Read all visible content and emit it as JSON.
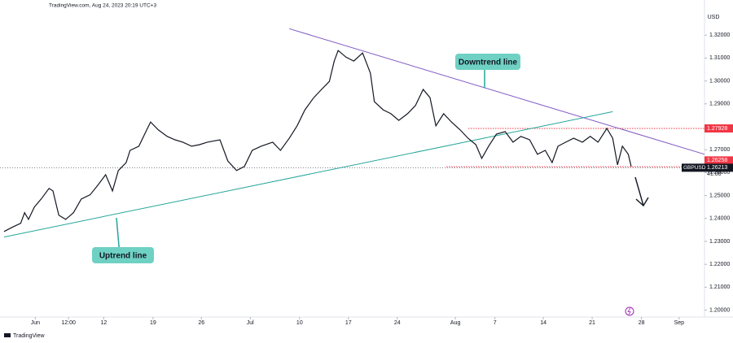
{
  "header": "TradingView.com, Aug 24, 2023 20:19 UTC+3",
  "brand": "TradingView",
  "chart_data": {
    "type": "line",
    "currency": "USD",
    "xlim": [
      0,
      71.7
    ],
    "xticks": [
      {
        "value": 3.2,
        "label": "Jun"
      },
      {
        "value": 6.6,
        "label": "12:00"
      },
      {
        "value": 10.2,
        "label": "12"
      },
      {
        "value": 15.25,
        "label": "19"
      },
      {
        "value": 20.2,
        "label": "26"
      },
      {
        "value": 25.2,
        "label": "Jul"
      },
      {
        "value": 30.25,
        "label": "10"
      },
      {
        "value": 35.25,
        "label": "17"
      },
      {
        "value": 40.25,
        "label": "24"
      },
      {
        "value": 46.2,
        "label": "Aug"
      },
      {
        "value": 50.25,
        "label": "7"
      },
      {
        "value": 55.2,
        "label": "14"
      },
      {
        "value": 60.2,
        "label": "21"
      },
      {
        "value": 65.25,
        "label": "28"
      },
      {
        "value": 69.1,
        "label": "Sep"
      }
    ],
    "ylim": [
      1.197,
      1.33
    ],
    "yticks": [
      {
        "value": 1.2,
        "label": "1.20000"
      },
      {
        "value": 1.21,
        "label": "1.21000"
      },
      {
        "value": 1.22,
        "label": "1.22000"
      },
      {
        "value": 1.23,
        "label": "1.23000"
      },
      {
        "value": 1.24,
        "label": "1.24000"
      },
      {
        "value": 1.25,
        "label": "1.25000"
      },
      {
        "value": 1.26,
        "label": "1.26000"
      },
      {
        "value": 1.27,
        "label": "1.27000"
      },
      {
        "value": 1.28,
        "label": "1.28000"
      },
      {
        "value": 1.29,
        "label": "1.29000"
      },
      {
        "value": 1.3,
        "label": "1.30000"
      },
      {
        "value": 1.31,
        "label": "1.31000"
      },
      {
        "value": 1.32,
        "label": "1.32000"
      }
    ],
    "x": [
      0,
      0.8,
      1.7,
      2.1,
      2.5,
      3.1,
      3.8,
      4.6,
      5,
      5.6,
      6.3,
      7.1,
      7.9,
      8.8,
      9.6,
      10.4,
      11.1,
      11.7,
      12.5,
      12.9,
      13.8,
      14.6,
      15,
      15.8,
      16.7,
      17.5,
      18.3,
      19.2,
      20,
      20.8,
      22.1,
      22.9,
      23.8,
      24.6,
      25.4,
      26.3,
      27.5,
      28.3,
      29.2,
      30,
      30.8,
      31.7,
      32.5,
      33.3,
      33.8,
      34.2,
      35,
      35.8,
      36.7,
      37.5,
      37.9,
      38.8,
      39.6,
      40.4,
      41.3,
      42.1,
      42.9,
      43.6,
      44.2,
      45,
      45.8,
      46.7,
      47.5,
      48.3,
      48.9,
      49.6,
      50.4,
      51.3,
      52.1,
      52.9,
      53.8,
      54.6,
      55.4,
      56.1,
      56.7,
      57.5,
      58.3,
      59.2,
      60,
      60.8,
      61.7,
      62.3,
      62.8,
      63.3,
      63.9,
      64.2
    ],
    "series": [
      {
        "name": "GBPUSD",
        "color": "#131722",
        "values": [
          1.2343,
          1.2361,
          1.2379,
          1.2425,
          1.2396,
          1.245,
          1.2485,
          1.2531,
          1.252,
          1.2414,
          1.2396,
          1.2425,
          1.2485,
          1.2503,
          1.2545,
          1.2591,
          1.252,
          1.2609,
          1.2644,
          1.2697,
          1.2715,
          1.2786,
          1.2821,
          1.2786,
          1.2758,
          1.2743,
          1.2733,
          1.2715,
          1.2722,
          1.2733,
          1.2743,
          1.2651,
          1.2609,
          1.2627,
          1.2697,
          1.2715,
          1.2733,
          1.2697,
          1.275,
          1.2804,
          1.2874,
          1.2927,
          1.2963,
          1.2998,
          1.3087,
          1.3133,
          1.3104,
          1.3087,
          1.3122,
          1.3034,
          1.291,
          1.2874,
          1.2857,
          1.2828,
          1.2857,
          1.2892,
          1.2963,
          1.2927,
          1.2804,
          1.2857,
          1.2821,
          1.2786,
          1.275,
          1.2722,
          1.2662,
          1.2715,
          1.2768,
          1.2779,
          1.2733,
          1.2758,
          1.2743,
          1.268,
          1.2697,
          1.2644,
          1.2715,
          1.2733,
          1.275,
          1.2733,
          1.2758,
          1.2733,
          1.2793,
          1.275,
          1.2634,
          1.2715,
          1.268,
          1.2627
        ]
      }
    ],
    "trendlines": [
      {
        "name": "Downtrend line",
        "color": "#7e57c2",
        "x": [
          29.2,
          71.7
        ],
        "values": [
          1.3228,
          1.268
        ]
      },
      {
        "name": "Uptrend line",
        "color": "#26a69a",
        "x": [
          0,
          62.3
        ],
        "values": [
          1.2319,
          1.2866
        ]
      }
    ],
    "levels": [
      {
        "value": 1.27928,
        "color": "#f23645"
      },
      {
        "value": 1.26258,
        "color": "#f23645"
      }
    ],
    "last": {
      "value": 1.26213,
      "countdown": "41:00"
    }
  }
}
